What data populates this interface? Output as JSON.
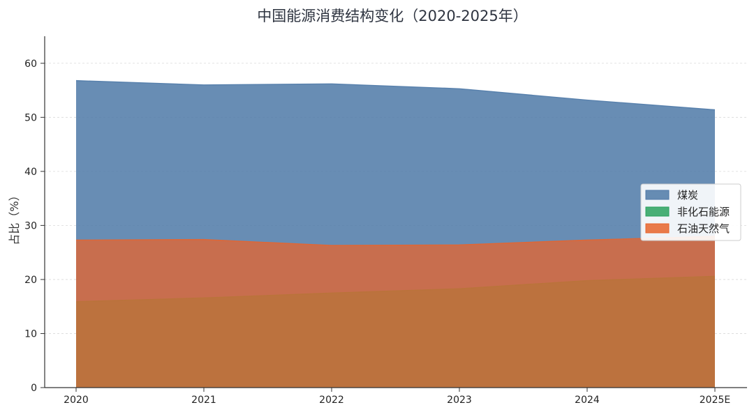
{
  "chart_data": {
    "type": "area",
    "title": "中国能源消费结构变化（2020-2025年）",
    "xlabel": "",
    "ylabel": "占比（%）",
    "categories": [
      "2020",
      "2021",
      "2022",
      "2023",
      "2024",
      "2025E"
    ],
    "ylim": [
      0,
      65
    ],
    "yticks": [
      0,
      10,
      20,
      30,
      40,
      50,
      60
    ],
    "grid": true,
    "legend_position": "right",
    "series": [
      {
        "name": "煤炭",
        "color": "#4e79a7",
        "values": [
          56.8,
          56.0,
          56.2,
          55.3,
          53.2,
          51.4
        ]
      },
      {
        "name": "非化石能源",
        "color": "#2ca25f",
        "values": [
          15.9,
          16.6,
          17.5,
          18.3,
          19.8,
          20.6
        ]
      },
      {
        "name": "石油天然气",
        "color": "#e8642c",
        "values": [
          27.3,
          27.4,
          26.3,
          26.4,
          27.3,
          28.0
        ]
      }
    ]
  }
}
